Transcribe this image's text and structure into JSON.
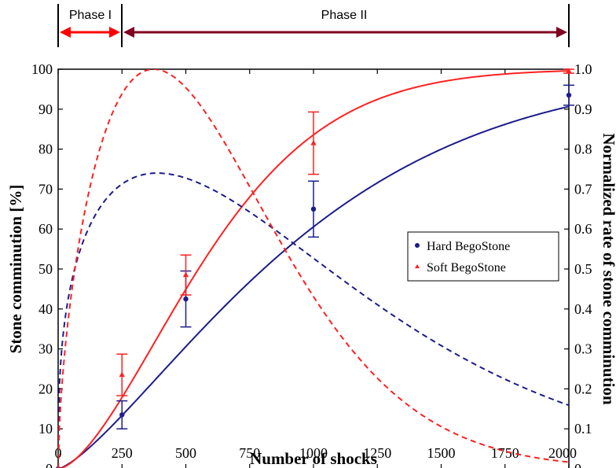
{
  "chart_data": {
    "type": "line",
    "xlabel": "Number of shocks",
    "ylabel_left": "Stone comminution [%]",
    "ylabel_right": "Normalized rate of stone comminution",
    "xlim": [
      0,
      2000
    ],
    "ylim_left": [
      0,
      100
    ],
    "ylim_right": [
      0,
      1.0
    ],
    "x_ticks": [
      "0",
      "250",
      "500",
      "750",
      "1000",
      "1250",
      "1500",
      "1750",
      "2000"
    ],
    "y_left_ticks": [
      "0",
      "10",
      "20",
      "30",
      "40",
      "50",
      "60",
      "70",
      "80",
      "90",
      "100"
    ],
    "y_right_ticks": [
      "0",
      "0.1",
      "0.2",
      "0.3",
      "0.4",
      "0.5",
      "0.6",
      "0.7",
      "0.8",
      "0.9",
      "1.0"
    ],
    "grid": false,
    "legend_placement": "right",
    "phases": [
      {
        "label": "Phase I",
        "x_start": 0,
        "x_end": 250,
        "color": "#ff0000"
      },
      {
        "label": "Phase II",
        "x_start": 250,
        "x_end": 2000,
        "color": "#800020"
      }
    ],
    "series": [
      {
        "name": "Hard BegoStone",
        "color": "#1c1c8c",
        "marker": "circle",
        "points": [
          {
            "x": 0,
            "y": 0,
            "err": 0
          },
          {
            "x": 250,
            "y": 13.5,
            "err": 3.5
          },
          {
            "x": 500,
            "y": 42.5,
            "err": 7
          },
          {
            "x": 1000,
            "y": 65,
            "err": 7
          },
          {
            "x": 2000,
            "y": 93.5,
            "err": 2.5
          }
        ],
        "fit": {
          "model": "weibull",
          "lambda": 1055,
          "k": 1.35
        }
      },
      {
        "name": "Soft BegoStone",
        "color": "#ff2020",
        "marker": "triangle",
        "points": [
          {
            "x": 0,
            "y": 0,
            "err": 0
          },
          {
            "x": 250,
            "y": 23.5,
            "err": 5.2
          },
          {
            "x": 500,
            "y": 48.5,
            "err": 5
          },
          {
            "x": 1000,
            "y": 81.5,
            "err": 7.8
          },
          {
            "x": 2000,
            "y": 99.5,
            "err": 0.5
          }
        ],
        "fit": {
          "model": "weibull",
          "lambda": 691,
          "k": 1.6
        }
      }
    ]
  }
}
